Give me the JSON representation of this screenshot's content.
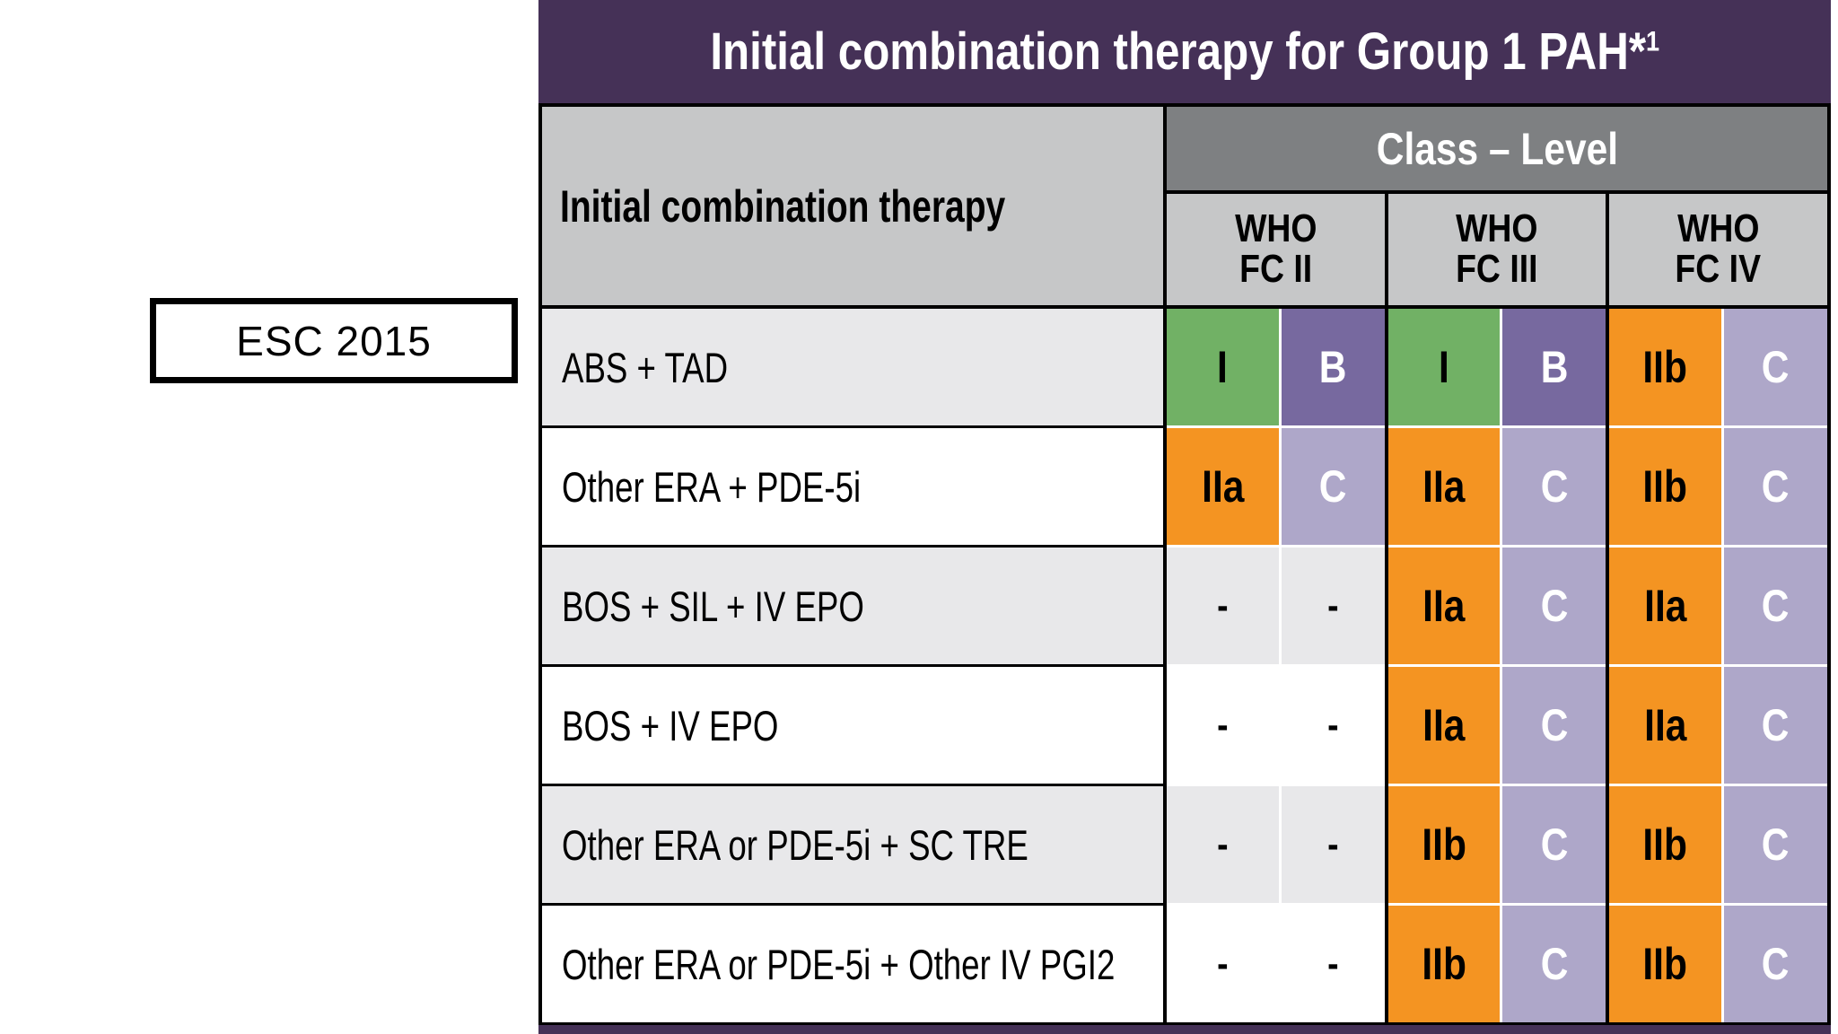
{
  "title": {
    "main": "Initial combination therapy for Group 1 PAH*",
    "sup": "1"
  },
  "side_label": "ESC 2015",
  "table": {
    "row_header": "Initial combination therapy",
    "class_level_header": "Class – Level",
    "fc_headers": [
      {
        "line1": "WHO",
        "line2": "FC II"
      },
      {
        "line1": "WHO",
        "line2": "FC III"
      },
      {
        "line1": "WHO",
        "line2": "FC IV"
      }
    ],
    "rows": [
      {
        "therapy": "ABS + TAD",
        "cells": [
          {
            "class": "I",
            "level": "B",
            "style": "green-purple"
          },
          {
            "class": "I",
            "level": "B",
            "style": "green-purple"
          },
          {
            "class": "IIb",
            "level": "C",
            "style": "orange-lilac"
          }
        ]
      },
      {
        "therapy": "Other ERA + PDE-5i",
        "cells": [
          {
            "class": "IIa",
            "level": "C",
            "style": "orange-lilac"
          },
          {
            "class": "IIa",
            "level": "C",
            "style": "orange-lilac"
          },
          {
            "class": "IIb",
            "level": "C",
            "style": "orange-lilac"
          }
        ]
      },
      {
        "therapy": "BOS + SIL + IV EPO",
        "cells": [
          {
            "class": "-",
            "level": "-",
            "style": "empty"
          },
          {
            "class": "IIa",
            "level": "C",
            "style": "orange-lilac"
          },
          {
            "class": "IIa",
            "level": "C",
            "style": "orange-lilac"
          }
        ]
      },
      {
        "therapy": "BOS + IV EPO",
        "cells": [
          {
            "class": "-",
            "level": "-",
            "style": "empty"
          },
          {
            "class": "IIa",
            "level": "C",
            "style": "orange-lilac"
          },
          {
            "class": "IIa",
            "level": "C",
            "style": "orange-lilac"
          }
        ]
      },
      {
        "therapy": "Other ERA or PDE-5i + SC TRE",
        "cells": [
          {
            "class": "-",
            "level": "-",
            "style": "empty"
          },
          {
            "class": "IIb",
            "level": "C",
            "style": "orange-lilac"
          },
          {
            "class": "IIb",
            "level": "C",
            "style": "orange-lilac"
          }
        ]
      },
      {
        "therapy": "Other ERA or PDE-5i + Other IV PGI2",
        "cells": [
          {
            "class": "-",
            "level": "-",
            "style": "empty"
          },
          {
            "class": "IIb",
            "level": "C",
            "style": "orange-lilac"
          },
          {
            "class": "IIb",
            "level": "C",
            "style": "orange-lilac"
          }
        ]
      }
    ]
  },
  "colors": {
    "title_bar_purple": "#453157",
    "class_level_header_gray": "#7e8082",
    "subheader_gray": "#c6c7c8",
    "row_stripe_gray": "#e8e8ea",
    "class_i_green": "#71b165",
    "level_b_purple": "#77699f",
    "class_ii_orange": "#f49422",
    "level_c_lilac": "#aea7c9"
  }
}
